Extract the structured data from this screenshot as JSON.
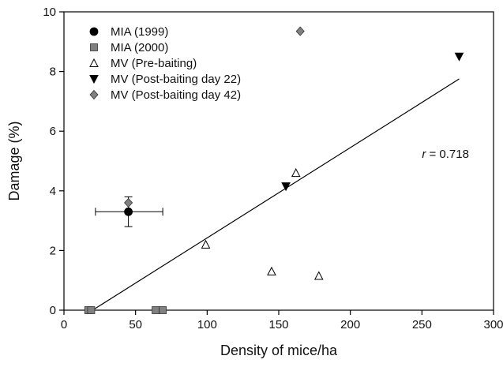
{
  "chart_data": {
    "type": "scatter",
    "xlabel": "Density of mice/ha",
    "ylabel": "Damage (%)",
    "xlim": [
      0,
      300
    ],
    "ylim": [
      0,
      10
    ],
    "xticks": [
      0,
      50,
      100,
      150,
      200,
      250,
      300
    ],
    "yticks": [
      0,
      2,
      4,
      6,
      8,
      10
    ],
    "grid": false,
    "legend_position": "top-left",
    "series": [
      {
        "name": "MIA (1999)",
        "marker": "circle",
        "color": "#000000",
        "points": [
          {
            "x": 45,
            "y": 3.3,
            "xerr": [
              22,
              69
            ],
            "yerr": [
              2.8,
              3.8
            ]
          }
        ]
      },
      {
        "name": "MIA (2000)",
        "marker": "square",
        "color": "#808080",
        "points": [
          {
            "x": 17,
            "y": 0
          },
          {
            "x": 19,
            "y": 0
          },
          {
            "x": 64,
            "y": 0
          },
          {
            "x": 69,
            "y": 0
          }
        ]
      },
      {
        "name": "MV (Pre-baiting)",
        "marker": "triangle-up-open",
        "color": "#000000",
        "points": [
          {
            "x": 99,
            "y": 2.2
          },
          {
            "x": 145,
            "y": 1.3
          },
          {
            "x": 162,
            "y": 4.6
          },
          {
            "x": 178,
            "y": 1.15
          }
        ]
      },
      {
        "name": "MV (Post-baiting day 22)",
        "marker": "triangle-down",
        "color": "#000000",
        "points": [
          {
            "x": 155,
            "y": 4.15
          },
          {
            "x": 276,
            "y": 8.5
          }
        ]
      },
      {
        "name": "MV (Post-baiting day 42)",
        "marker": "diamond",
        "color": "#808080",
        "points": [
          {
            "x": 45,
            "y": 3.6
          },
          {
            "x": 165,
            "y": 9.35
          }
        ]
      }
    ],
    "regression_line": {
      "x": [
        20,
        276
      ],
      "y": [
        0,
        7.75
      ]
    },
    "annotations": [
      {
        "text": "r = 0.718",
        "x": 250,
        "y": 5.1
      }
    ]
  }
}
